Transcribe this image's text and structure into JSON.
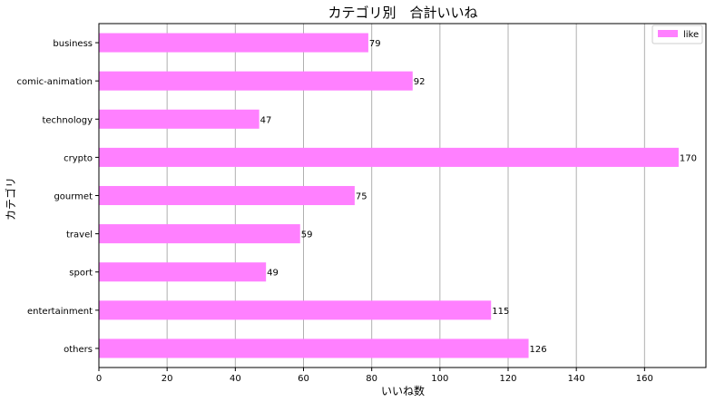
{
  "chart_data": {
    "type": "bar",
    "orientation": "horizontal",
    "title": "カテゴリ別　合計いいね",
    "xlabel": "いいね数",
    "ylabel": "カテゴリ",
    "categories": [
      "business",
      "comic-animation",
      "technology",
      "crypto",
      "gourmet",
      "travel",
      "sport",
      "entertainment",
      "others"
    ],
    "series": [
      {
        "name": "like",
        "values": [
          79,
          92,
          47,
          170,
          75,
          59,
          49,
          115,
          126
        ],
        "color": "#ff80ff"
      }
    ],
    "xlim": [
      0,
      178
    ],
    "xticks": [
      0,
      20,
      40,
      60,
      80,
      100,
      120,
      140,
      160
    ],
    "grid": "vertical",
    "legend": "top-right",
    "data_labels": true
  }
}
